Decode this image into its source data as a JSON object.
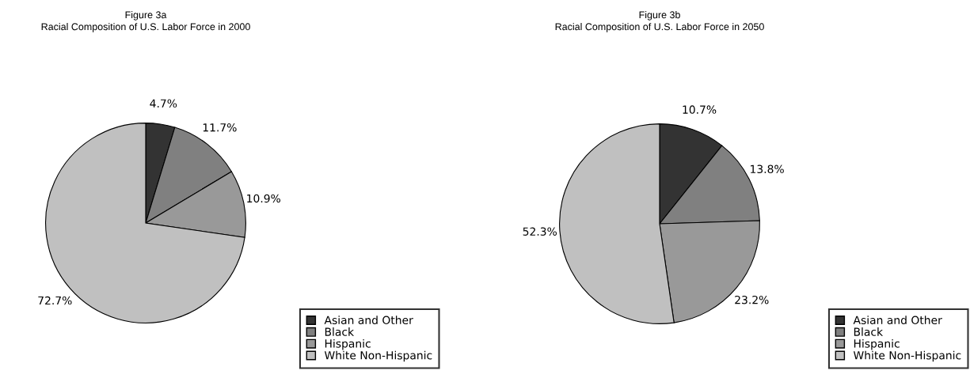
{
  "chart_data": [
    {
      "type": "pie",
      "title": "Figure 3a",
      "subtitle": "Racial Composition of U.S. Labor Force in 2000",
      "categories": [
        "Asian and Other",
        "Black",
        "Hispanic",
        "White Non-Hispanic"
      ],
      "values": [
        4.7,
        11.7,
        10.9,
        72.7
      ],
      "colors": [
        "#333333",
        "#808080",
        "#999999",
        "#c0c0c0"
      ],
      "value_labels": [
        "4.7%",
        "11.7%",
        "10.9%",
        "72.7%"
      ],
      "legend": "bottom right"
    },
    {
      "type": "pie",
      "title": "Figure 3b",
      "subtitle": "Racial Composition of U.S. Labor Force in 2050",
      "categories": [
        "Asian and Other",
        "Black",
        "Hispanic",
        "White Non-Hispanic"
      ],
      "values": [
        10.7,
        13.8,
        23.2,
        52.3
      ],
      "colors": [
        "#333333",
        "#808080",
        "#999999",
        "#c0c0c0"
      ],
      "value_labels": [
        "10.7%",
        "13.8%",
        "23.2%",
        "52.3%"
      ],
      "legend": "bottom right"
    }
  ]
}
